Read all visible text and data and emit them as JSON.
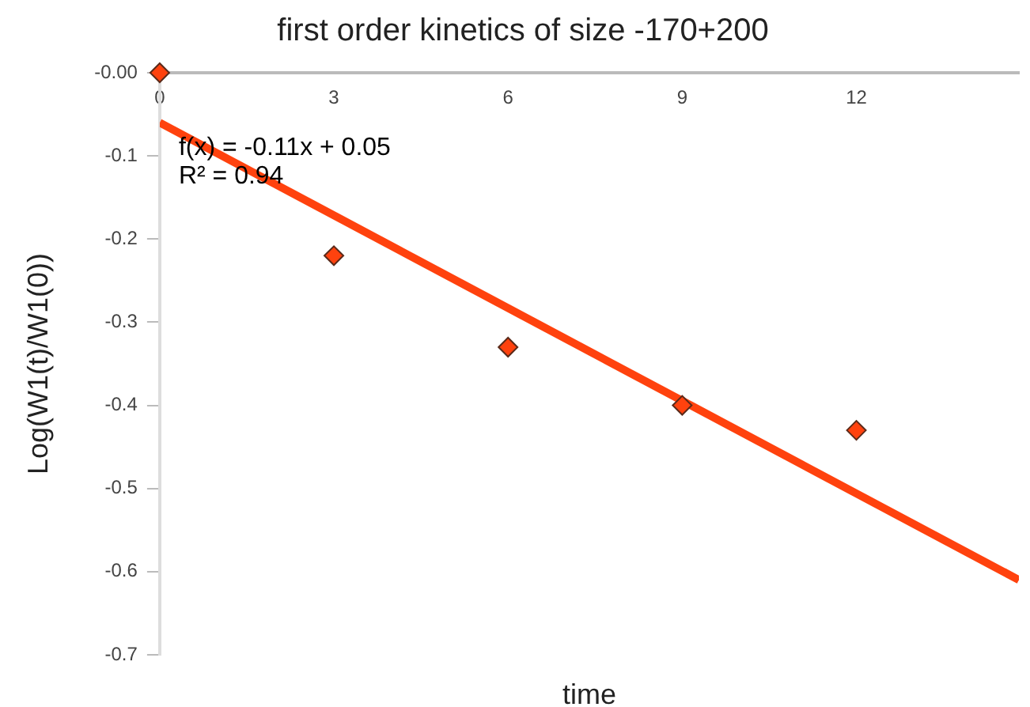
{
  "chart_data": {
    "type": "scatter",
    "title": "first order kinetics of size -170+200",
    "xlabel": "time",
    "ylabel": "Log(W1(t)/W1(0))",
    "x": [
      0,
      3,
      6,
      9,
      12
    ],
    "series": [
      {
        "color": "#ff420e",
        "marker": "diamond",
        "values": [
          0,
          -0.22,
          -0.33,
          -0.4,
          -0.43
        ]
      },
      {
        "type": "line",
        "color": "#ff420e",
        "x": [
          0,
          14.8
        ],
        "values": [
          -0.06,
          -0.61
        ]
      }
    ],
    "annotations": [
      "f(x) = -0.11x + 0.05",
      "R² = 0.94"
    ],
    "xlim": [
      0,
      14.8
    ],
    "ylim": [
      -0.7,
      0
    ],
    "xticks": [
      0,
      3,
      6,
      9,
      12
    ],
    "yticks": [
      {
        "value": 0,
        "label": "-0.00"
      },
      -0.1,
      -0.2,
      -0.3,
      -0.4,
      -0.5,
      -0.6,
      -0.7
    ],
    "grid": false,
    "legend": false
  }
}
